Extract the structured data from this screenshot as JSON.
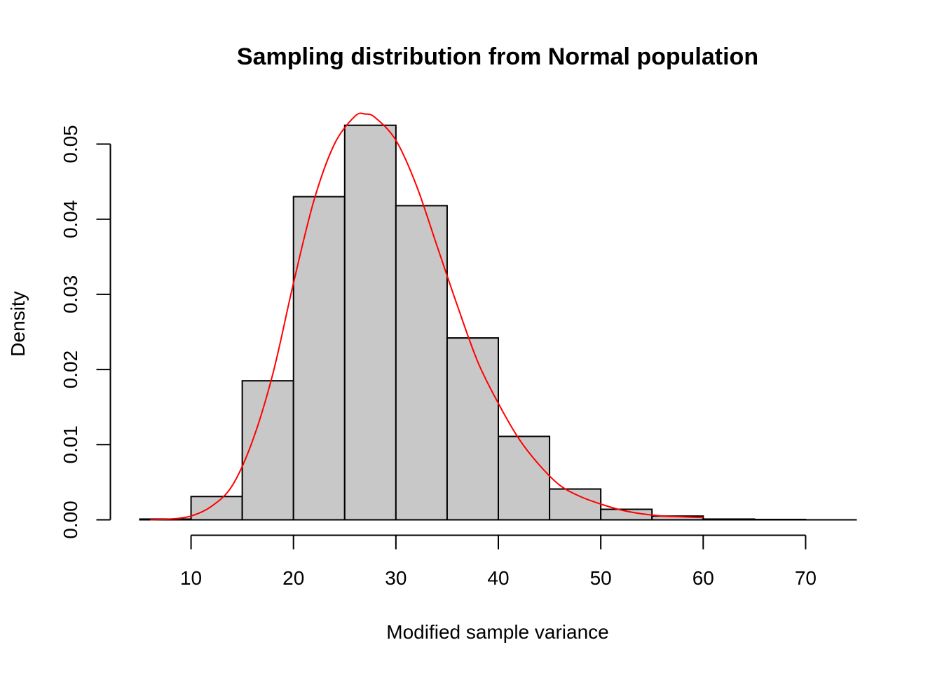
{
  "chart_data": {
    "type": "bar",
    "title": "Sampling distribution from Normal population",
    "xlabel": "Modified sample variance",
    "ylabel": "Density",
    "bins": [
      {
        "start": 5,
        "end": 10,
        "density": 0.0001
      },
      {
        "start": 10,
        "end": 15,
        "density": 0.0031
      },
      {
        "start": 15,
        "end": 20,
        "density": 0.0185
      },
      {
        "start": 20,
        "end": 25,
        "density": 0.043
      },
      {
        "start": 25,
        "end": 30,
        "density": 0.0525
      },
      {
        "start": 30,
        "end": 35,
        "density": 0.0418
      },
      {
        "start": 35,
        "end": 40,
        "density": 0.0242
      },
      {
        "start": 40,
        "end": 45,
        "density": 0.0111
      },
      {
        "start": 45,
        "end": 50,
        "density": 0.0041
      },
      {
        "start": 50,
        "end": 55,
        "density": 0.0014
      },
      {
        "start": 55,
        "end": 60,
        "density": 0.0005
      },
      {
        "start": 60,
        "end": 65,
        "density": 0.0001
      },
      {
        "start": 65,
        "end": 70,
        "density": 5e-05
      }
    ],
    "xticks": [
      "10",
      "20",
      "30",
      "40",
      "50",
      "60",
      "70"
    ],
    "yticks": [
      "0.00",
      "0.01",
      "0.02",
      "0.03",
      "0.04",
      "0.05"
    ],
    "xlim": [
      5,
      75
    ],
    "ylim": [
      0,
      0.054
    ],
    "curve": {
      "color": "#ff0000",
      "x": [
        6,
        8,
        10,
        12,
        14,
        16,
        18,
        20,
        22,
        24,
        26,
        27,
        28,
        30,
        32,
        34,
        36,
        38,
        40,
        42,
        44,
        46,
        48,
        50,
        52,
        54,
        56,
        58,
        60
      ],
      "y": [
        0.0,
        0.0001,
        0.0005,
        0.0018,
        0.0045,
        0.0105,
        0.0195,
        0.0315,
        0.0425,
        0.05,
        0.0537,
        0.054,
        0.0535,
        0.0505,
        0.0445,
        0.0365,
        0.0285,
        0.021,
        0.0155,
        0.0108,
        0.0073,
        0.0046,
        0.0031,
        0.0021,
        0.0013,
        0.0008,
        0.0005,
        0.0004,
        0.0003
      ]
    },
    "bar_color": "#c8c8c8",
    "grid": false,
    "legend": "none"
  }
}
